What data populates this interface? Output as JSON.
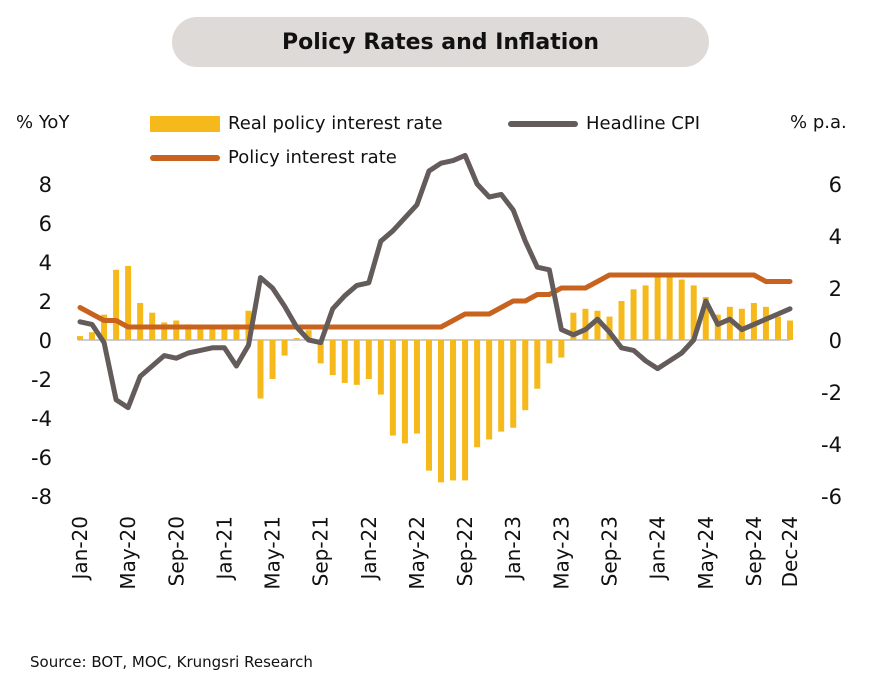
{
  "title": "Policy Rates and Inflation",
  "left_axis_unit": "% YoY",
  "right_axis_unit": "% p.a.",
  "source": "Source: BOT, MOC, Krungsri Research",
  "colors": {
    "bars": "#f6b91b",
    "cpi": "#645b5b",
    "policy": "#c8631f",
    "zero_line": "#999999"
  },
  "chart_data": {
    "type": "bar",
    "x_tick_labels": [
      "Jan-20",
      "May-20",
      "Sep-20",
      "Jan-21",
      "May-21",
      "Sep-21",
      "Jan-22",
      "May-22",
      "Sep-22",
      "Jan-23",
      "May-23",
      "Sep-23",
      "Jan-24",
      "May-24",
      "Sep-24",
      "Dec-24"
    ],
    "x": [
      "Jan-20",
      "Feb-20",
      "Mar-20",
      "Apr-20",
      "May-20",
      "Jun-20",
      "Jul-20",
      "Aug-20",
      "Sep-20",
      "Oct-20",
      "Nov-20",
      "Dec-20",
      "Jan-21",
      "Feb-21",
      "Mar-21",
      "Apr-21",
      "May-21",
      "Jun-21",
      "Jul-21",
      "Aug-21",
      "Sep-21",
      "Oct-21",
      "Nov-21",
      "Dec-21",
      "Jan-22",
      "Feb-22",
      "Mar-22",
      "Apr-22",
      "May-22",
      "Jun-22",
      "Jul-22",
      "Aug-22",
      "Sep-22",
      "Oct-22",
      "Nov-22",
      "Dec-22",
      "Jan-23",
      "Feb-23",
      "Mar-23",
      "Apr-23",
      "May-23",
      "Jun-23",
      "Jul-23",
      "Aug-23",
      "Sep-23",
      "Oct-23",
      "Nov-23",
      "Dec-23",
      "Jan-24",
      "Feb-24",
      "Mar-24",
      "Apr-24",
      "May-24",
      "Jun-24",
      "Jul-24",
      "Aug-24",
      "Sep-24",
      "Oct-24",
      "Nov-24",
      "Dec-24"
    ],
    "left_axis": {
      "ylim": [
        -8,
        8
      ],
      "ticks": [
        "8",
        "6",
        "4",
        "2",
        "0",
        "-2",
        "-4",
        "-6",
        "-8"
      ]
    },
    "right_axis": {
      "ylim": [
        -6,
        6
      ],
      "ticks": [
        "6",
        "4",
        "2",
        "0",
        "-2",
        "-4",
        "-6"
      ]
    },
    "series": [
      {
        "name": "Real policy interest rate",
        "type": "bar",
        "axis": "left",
        "values": [
          0.2,
          0.4,
          1.3,
          3.6,
          3.8,
          1.9,
          1.4,
          0.9,
          1.0,
          0.8,
          0.7,
          0.7,
          0.6,
          0.8,
          1.5,
          -3.0,
          -2.0,
          -0.8,
          0.1,
          0.5,
          -1.2,
          -1.8,
          -2.2,
          -2.3,
          -2.0,
          -2.8,
          -4.9,
          -5.3,
          -4.8,
          -6.7,
          -7.3,
          -7.2,
          -7.2,
          -5.5,
          -5.1,
          -4.7,
          -4.5,
          -3.6,
          -2.5,
          -1.2,
          -0.9,
          1.4,
          1.6,
          1.5,
          1.2,
          2.0,
          2.6,
          2.8,
          3.3,
          3.4,
          3.1,
          2.8,
          2.2,
          1.3,
          1.7,
          1.6,
          1.9,
          1.7,
          1.2,
          1.0
        ]
      },
      {
        "name": "Headline CPI",
        "type": "line",
        "axis": "right",
        "values": [
          0.7,
          0.6,
          -0.1,
          -2.3,
          -2.6,
          -1.4,
          -1.0,
          -0.6,
          -0.7,
          -0.5,
          -0.4,
          -0.3,
          -0.3,
          -1.0,
          -0.2,
          2.4,
          2.0,
          1.3,
          0.5,
          0.0,
          -0.1,
          1.2,
          1.7,
          2.1,
          2.2,
          3.8,
          4.2,
          4.7,
          5.2,
          6.5,
          6.8,
          6.9,
          7.1,
          6.0,
          5.5,
          5.6,
          5.0,
          3.8,
          2.8,
          2.7,
          0.4,
          0.2,
          0.4,
          0.8,
          0.3,
          -0.3,
          -0.4,
          -0.8,
          -1.1,
          -0.8,
          -0.5,
          0.0,
          1.5,
          0.6,
          0.8,
          0.4,
          0.6,
          0.8,
          1.0,
          1.2
        ]
      },
      {
        "name": "Policy interest rate",
        "type": "line",
        "axis": "right",
        "values": [
          1.25,
          1.0,
          0.75,
          0.75,
          0.5,
          0.5,
          0.5,
          0.5,
          0.5,
          0.5,
          0.5,
          0.5,
          0.5,
          0.5,
          0.5,
          0.5,
          0.5,
          0.5,
          0.5,
          0.5,
          0.5,
          0.5,
          0.5,
          0.5,
          0.5,
          0.5,
          0.5,
          0.5,
          0.5,
          0.5,
          0.5,
          0.75,
          1.0,
          1.0,
          1.0,
          1.25,
          1.5,
          1.5,
          1.75,
          1.75,
          2.0,
          2.0,
          2.0,
          2.25,
          2.5,
          2.5,
          2.5,
          2.5,
          2.5,
          2.5,
          2.5,
          2.5,
          2.5,
          2.5,
          2.5,
          2.5,
          2.5,
          2.25,
          2.25,
          2.25
        ]
      }
    ]
  }
}
